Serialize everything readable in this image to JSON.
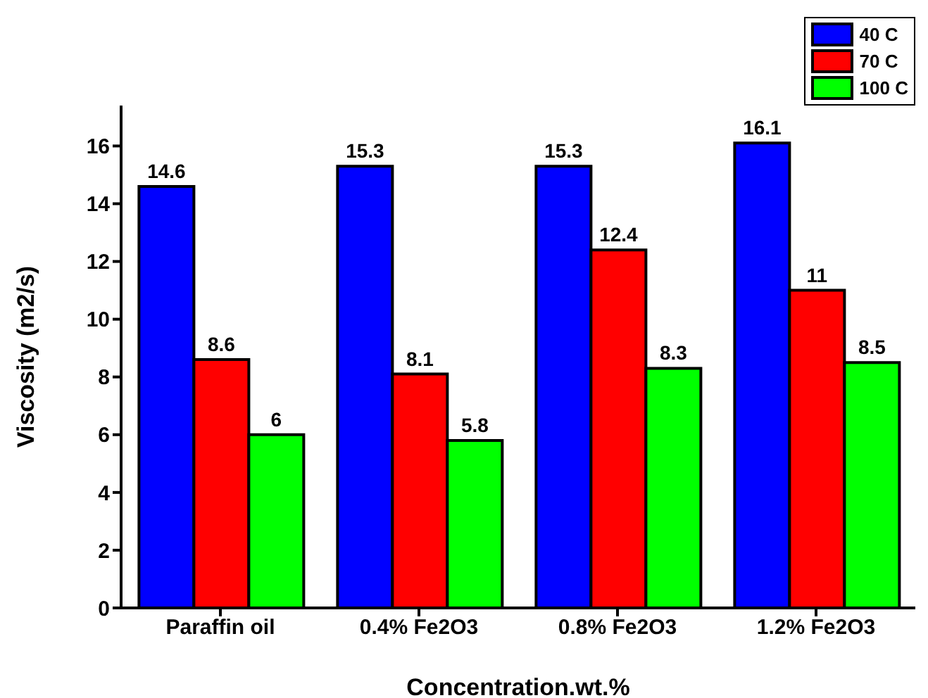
{
  "chart_data": {
    "type": "bar",
    "xlabel": "Concentration.wt.%",
    "ylabel": "Viscosity (m2/s)",
    "categories": [
      "Paraffin oil",
      "0.4% Fe2O3",
      "0.8% Fe2O3",
      "1.2% Fe2O3"
    ],
    "series": [
      {
        "name": "40 C",
        "color": "#0000ff",
        "values": [
          14.6,
          15.3,
          15.3,
          16.1
        ]
      },
      {
        "name": "70 C",
        "color": "#ff0000",
        "values": [
          8.6,
          8.1,
          12.4,
          11
        ]
      },
      {
        "name": "100 C",
        "color": "#00ff00",
        "values": [
          6,
          5.8,
          8.3,
          8.5
        ]
      }
    ],
    "ylim": [
      0,
      17.4
    ],
    "yticks": [
      0,
      2,
      4,
      6,
      8,
      10,
      12,
      14,
      16
    ],
    "data_labels": true,
    "legend": "top right",
    "grid": false
  }
}
